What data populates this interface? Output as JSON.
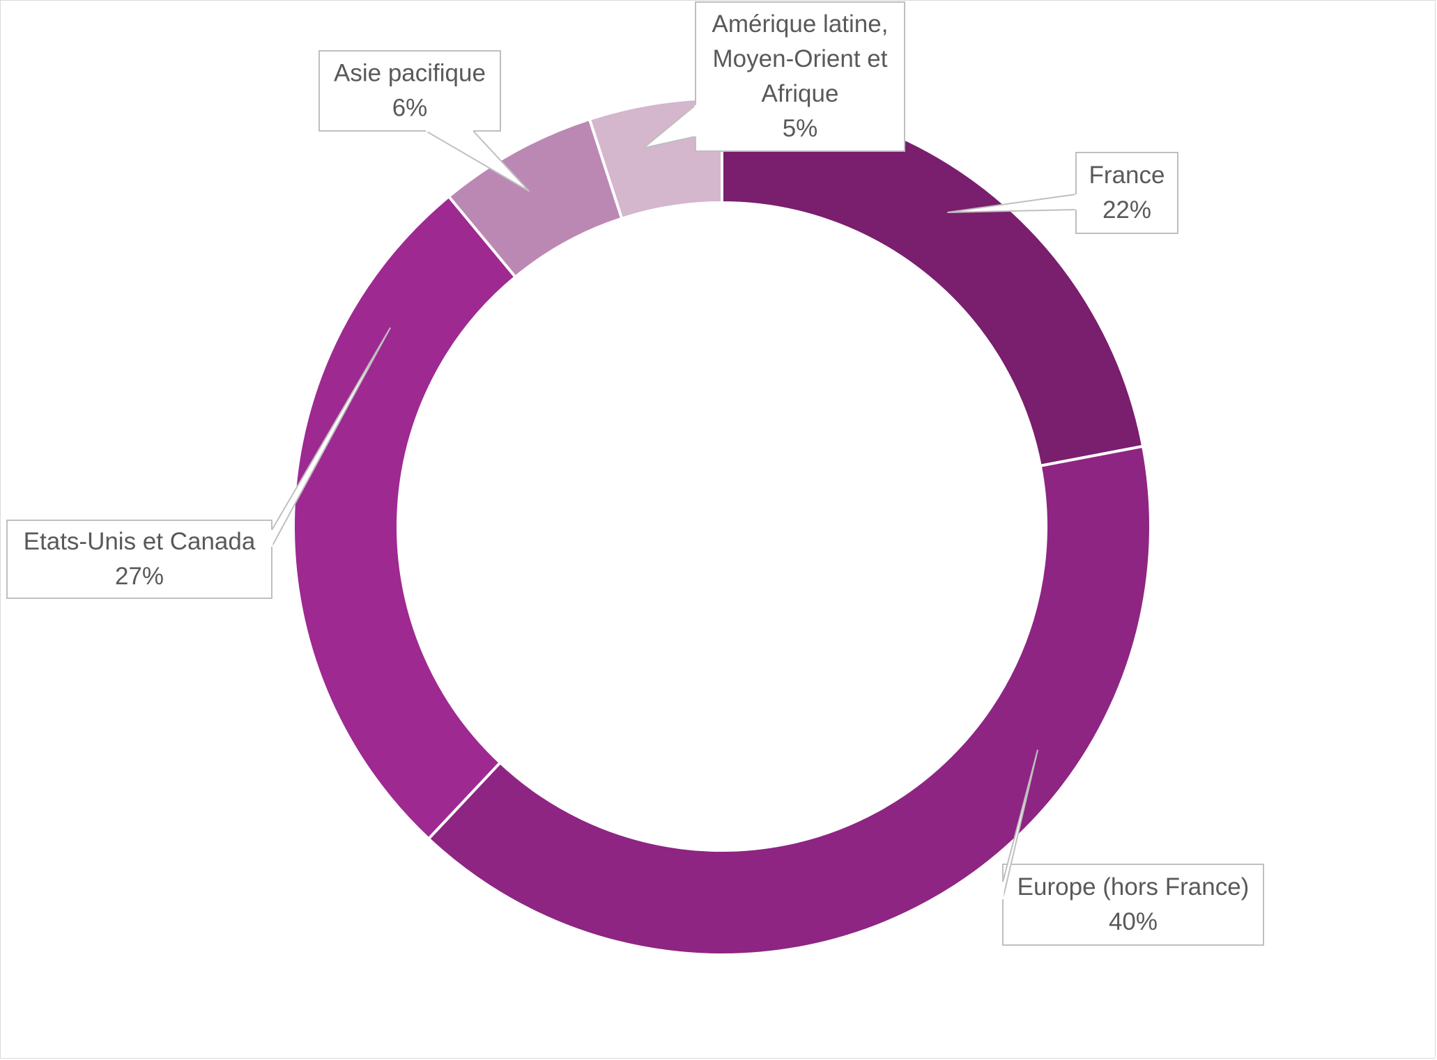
{
  "chart_data": {
    "type": "pie",
    "donut": true,
    "start_angle_deg": 0,
    "direction": "clockwise",
    "slices": [
      {
        "label": "France",
        "value": 22,
        "display": "22%",
        "color": "#7a1e6e"
      },
      {
        "label": "Europe (hors France)",
        "value": 40,
        "display": "40%",
        "color": "#8e2582"
      },
      {
        "label": "Etats-Unis et Canada",
        "value": 27,
        "display": "27%",
        "color": "#9e2991"
      },
      {
        "label": "Asie pacifique",
        "value": 6,
        "display": "6%",
        "color": "#bb88b4"
      },
      {
        "label": "Amérique latine, Moyen-Orient et Afrique",
        "value": 5,
        "display": "5%",
        "color": "#d4b6cd"
      }
    ],
    "legend": "none",
    "data_labels": "callouts"
  }
}
